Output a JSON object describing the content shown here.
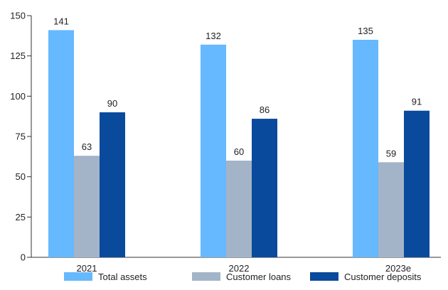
{
  "chart_data": {
    "type": "bar",
    "categories": [
      "2021",
      "2022",
      "2023e"
    ],
    "series": [
      {
        "name": "Total assets",
        "values": [
          141,
          132,
          135
        ],
        "color": "#66b8ff"
      },
      {
        "name": "Customer loans",
        "values": [
          63,
          60,
          59
        ],
        "color": "#a3b4c8"
      },
      {
        "name": "Customer deposits",
        "values": [
          90,
          86,
          91
        ],
        "color": "#0a4a9c"
      }
    ],
    "ylim": [
      0,
      150
    ],
    "yticks": [
      0,
      25,
      50,
      75,
      100,
      125,
      150
    ],
    "title": "",
    "xlabel": "",
    "ylabel": "",
    "grid": false,
    "legend_position": "bottom",
    "data_labels": true
  }
}
